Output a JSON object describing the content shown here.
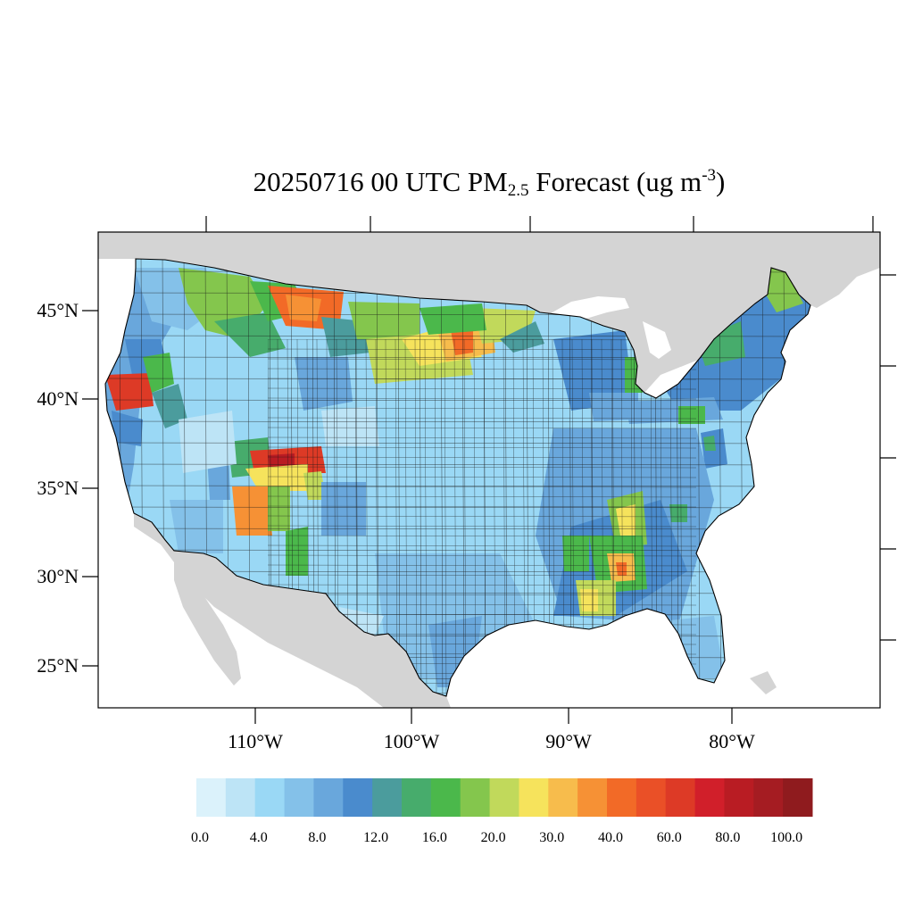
{
  "title": {
    "prefix": "20250716 00 UTC PM",
    "subscript": "2.5",
    "middle": " Forecast (ug m",
    "superscript": "-3",
    "suffix": ")"
  },
  "axes": {
    "lat_labels": [
      "45°N",
      "40°N",
      "35°N",
      "30°N",
      "25°N"
    ],
    "lon_labels": [
      "110°W",
      "100°W",
      "90°W",
      "80°W"
    ]
  },
  "colors": {
    "land_outside": "#d4d4d4",
    "water": "#ffffff",
    "border": "#000000"
  },
  "colorbar": {
    "colors": [
      "#dbf2fb",
      "#bde4f6",
      "#9ad8f5",
      "#84c1e9",
      "#69a7dc",
      "#4a8bcd",
      "#4b9c9d",
      "#47ac6c",
      "#4bb84b",
      "#84c64d",
      "#c1d95b",
      "#f6e35c",
      "#f7bc4c",
      "#f69135",
      "#f26a27",
      "#ea5027",
      "#dd3a26",
      "#d11f2a",
      "#b91c23",
      "#a51c22",
      "#8f1b1e"
    ],
    "labels": [
      "0.0",
      "4.0",
      "8.0",
      "12.0",
      "16.0",
      "20.0",
      "30.0",
      "40.0",
      "60.0",
      "80.0",
      "100.0"
    ]
  },
  "regions": [
    {
      "color": "#9ad8f5",
      "desc": "base CONUS"
    },
    {
      "color": "#84c1e9"
    },
    {
      "color": "#69a7dc"
    },
    {
      "color": "#4a8bcd"
    },
    {
      "color": "#4bb84b"
    },
    {
      "color": "#84c64d"
    },
    {
      "color": "#c1d95b"
    },
    {
      "color": "#f6e35c"
    },
    {
      "color": "#f7bc4c"
    },
    {
      "color": "#f69135"
    },
    {
      "color": "#f26a27"
    },
    {
      "color": "#ea5027"
    },
    {
      "color": "#dd3a26"
    },
    {
      "color": "#b91c23"
    },
    {
      "color": "#47ac6c"
    },
    {
      "color": "#4b9c9d"
    }
  ]
}
